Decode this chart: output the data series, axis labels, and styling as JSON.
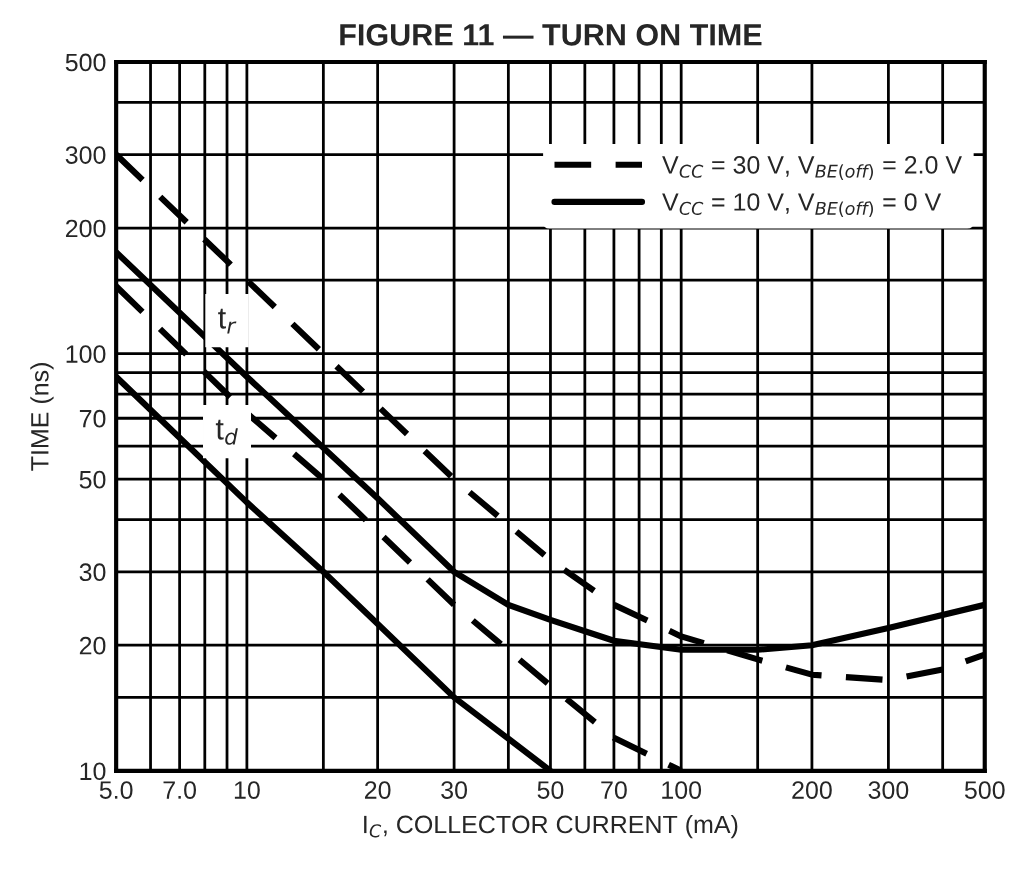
{
  "chart_data": {
    "type": "line",
    "title": "FIGURE 11 — TURN ON TIME",
    "xlabel": "I$_{C}$, COLLECTOR CURRENT (mA)",
    "ylabel": "TIME (ns)",
    "log": "xy",
    "grid": true,
    "legend": "top right",
    "xlim": [
      5,
      500
    ],
    "ylim": [
      10,
      500
    ],
    "xticks": [
      {
        "value": 5,
        "label": "5.0"
      },
      {
        "value": 6,
        "label": null
      },
      {
        "value": 7,
        "label": "7.0"
      },
      {
        "value": 8,
        "label": null
      },
      {
        "value": 9,
        "label": null
      },
      10,
      {
        "value": 15,
        "label": null
      },
      20,
      30,
      {
        "value": 40,
        "label": null
      },
      50,
      {
        "value": 60,
        "label": null
      },
      70,
      {
        "value": 80,
        "label": null
      },
      {
        "value": 90,
        "label": null
      },
      100,
      {
        "value": 150,
        "label": null
      },
      200,
      300,
      {
        "value": 400,
        "label": null
      },
      500
    ],
    "yticks": [
      10,
      {
        "value": 15,
        "label": null
      },
      20,
      30,
      {
        "value": 40,
        "label": null
      },
      50,
      {
        "value": 60,
        "label": null
      },
      70,
      {
        "value": 80,
        "label": null
      },
      {
        "value": 90,
        "label": null
      },
      100,
      {
        "value": 150,
        "label": null
      },
      200,
      300,
      {
        "value": 400,
        "label": null
      },
      500
    ],
    "series": [
      {
        "name": "V$_{CC}$ = 30 V, V$_{BE(off)}$ = 2.0 V",
        "color": "#000000",
        "line_style": "dashed",
        "x": [
          5,
          10,
          20,
          30,
          50,
          70,
          100,
          150,
          200,
          300,
          400,
          500
        ],
        "values": [
          300,
          150,
          75,
          50,
          32,
          25,
          21,
          18.5,
          17,
          16.5,
          17.5,
          19
        ]
      },
      {
        "name": "V$_{CC}$ = 10 V, V$_{BE(off)}$ = 0 V",
        "color": "#000000",
        "line_style": "solid",
        "x": [
          5,
          10,
          20,
          30,
          40,
          50,
          70,
          100,
          150,
          200,
          300,
          500
        ],
        "values": [
          175,
          88,
          45,
          30,
          25,
          23,
          20.5,
          19.5,
          19.5,
          20,
          22,
          25
        ]
      },
      {
        "color": "#000000",
        "line_style": "dashed",
        "x": [
          5,
          10,
          15,
          30,
          50,
          70,
          100
        ],
        "values": [
          145,
          72,
          50,
          25,
          16,
          12,
          10
        ]
      },
      {
        "color": "#000000",
        "line_style": "solid",
        "x": [
          5,
          10,
          15,
          30,
          50
        ],
        "values": [
          88,
          44,
          30,
          15,
          10
        ]
      }
    ],
    "annotations": [
      {
        "text": "t$_{r}$",
        "x": 9,
        "y": 120
      },
      {
        "text": "t$_{d}$",
        "x": 9,
        "y": 65
      }
    ]
  }
}
